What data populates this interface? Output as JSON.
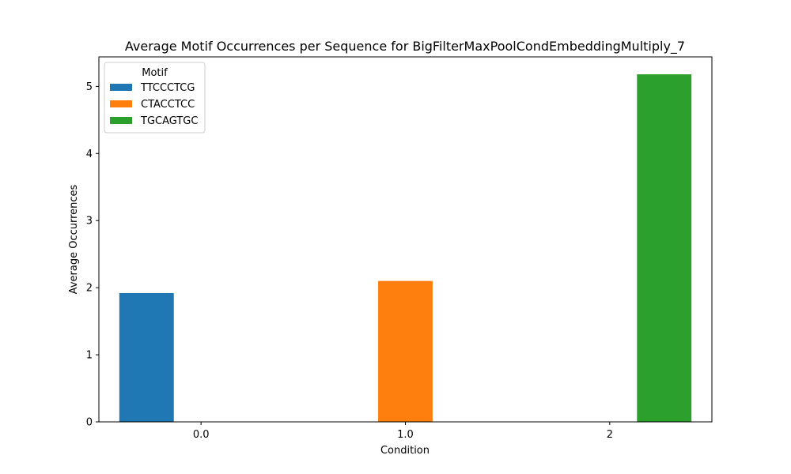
{
  "chart_data": {
    "type": "bar",
    "title": "Average Motif Occurrences per Sequence for BigFilterMaxPoolCondEmbeddingMultiply_7",
    "xlabel": "Condition",
    "ylabel": "Average Occurrences",
    "categories": [
      "0.0",
      "1.0",
      "2"
    ],
    "ylim": [
      0,
      5.44
    ],
    "yticks": [
      0,
      1,
      2,
      3,
      4,
      5
    ],
    "grid": false,
    "legend": {
      "title": "Motif",
      "placement": "top-left"
    },
    "series": [
      {
        "name": "TTCCCTCG",
        "color": "#1f77b4",
        "values": [
          1.92,
          0,
          0
        ]
      },
      {
        "name": "CTACCTCC",
        "color": "#ff7f0e",
        "values": [
          0,
          2.1,
          0
        ]
      },
      {
        "name": "TGCAGTGC",
        "color": "#2ca02c",
        "values": [
          0,
          0,
          5.18
        ]
      }
    ]
  }
}
